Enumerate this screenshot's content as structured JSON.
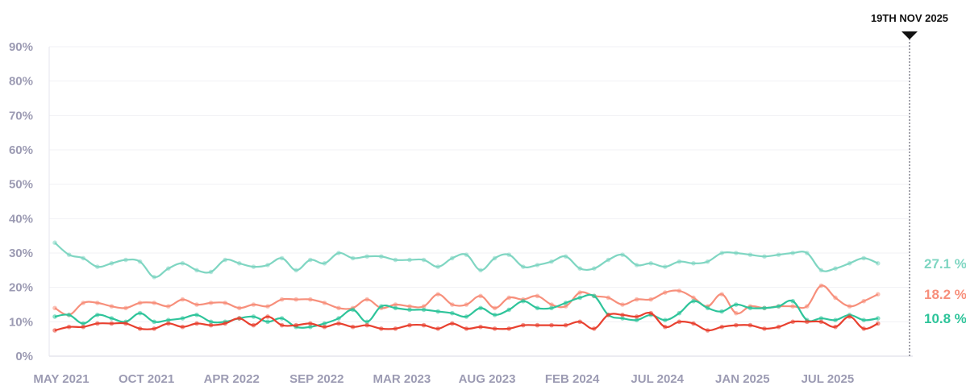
{
  "chart_data": {
    "type": "line",
    "title": "",
    "xlabel": "",
    "ylabel": "",
    "ylim": [
      0,
      90
    ],
    "y_ticks": [
      "0%",
      "10%",
      "20%",
      "30%",
      "40%",
      "50%",
      "60%",
      "70%",
      "80%",
      "90%"
    ],
    "x_tick_labels": [
      "MAY 2021",
      "OCT 2021",
      "APR 2022",
      "SEP 2022",
      "MAR 2023",
      "AUG 2023",
      "FEB 2024",
      "JUL 2024",
      "JAN 2025",
      "JUL 2025"
    ],
    "x_tick_indices": [
      0,
      6,
      12,
      18,
      24,
      30,
      36,
      42,
      48,
      54
    ],
    "date_marker": {
      "label": "19TH NOV 2025",
      "index": 59
    },
    "grid": true,
    "legend": "none",
    "colors": {
      "s1": "#7fd6c2",
      "s2": "#f78f7b",
      "s3": "#2ec49a",
      "s4": "#e8402f"
    },
    "series": [
      {
        "key": "s1",
        "end_label": "27.1 %",
        "values": [
          33,
          29.5,
          28.5,
          26,
          27,
          28,
          27.5,
          23,
          25.5,
          27,
          25,
          24.5,
          28,
          27,
          26,
          26.5,
          28.5,
          25,
          28,
          27,
          30,
          28.5,
          29,
          29,
          28,
          28,
          28,
          26,
          28.5,
          29.5,
          25,
          28.5,
          29.5,
          26,
          26.5,
          27.5,
          29,
          25.5,
          25.5,
          28,
          29.5,
          26.5,
          27,
          26,
          27.5,
          27,
          27.5,
          30,
          30,
          29.5,
          29,
          29.5,
          30,
          30,
          25,
          25.5,
          27,
          28.5,
          27
        ]
      },
      {
        "key": "s2",
        "end_label": "18.2 %",
        "values": [
          14,
          12,
          15.5,
          15.5,
          14.5,
          14,
          15.5,
          15.5,
          14.5,
          16.5,
          15,
          15.5,
          15.5,
          14,
          15,
          14.5,
          16.5,
          16.5,
          16.5,
          15.5,
          14,
          14,
          16.5,
          14,
          15,
          14.5,
          14.5,
          18,
          15,
          15,
          17.5,
          14,
          17,
          16.5,
          17.5,
          15,
          14.5,
          18.5,
          17.5,
          17,
          15,
          16.5,
          16.5,
          18.5,
          19,
          17,
          14.5,
          18,
          12.5,
          14.5,
          14,
          14.5,
          14.5,
          14.5,
          20.5,
          17,
          14.5,
          16,
          18
        ]
      },
      {
        "key": "s3",
        "end_label": "10.8 %",
        "values": [
          11.5,
          12,
          9.5,
          12,
          11,
          10,
          12.5,
          10,
          10.5,
          11,
          12,
          10,
          10,
          11,
          11.5,
          10,
          11,
          8.5,
          8.5,
          9.5,
          11,
          13.5,
          10,
          14.5,
          14,
          13.5,
          13.5,
          13,
          12.5,
          11.5,
          14,
          12,
          13.5,
          16,
          14,
          14,
          15.5,
          17,
          17.5,
          12,
          11,
          10.5,
          12,
          10.5,
          12.5,
          16,
          14,
          13,
          15,
          14,
          14,
          14.5,
          16,
          10.5,
          11,
          10.5,
          12,
          10.5,
          11
        ]
      },
      {
        "key": "s4",
        "end_label": "",
        "values": [
          7.5,
          8.5,
          8.5,
          9.5,
          9.5,
          9.5,
          8,
          8,
          9.5,
          8.5,
          9.5,
          9,
          9.5,
          11,
          9,
          11.5,
          9,
          9,
          9.5,
          8.5,
          9.5,
          8.5,
          9,
          8,
          8,
          9,
          9,
          8,
          9.5,
          8,
          8.5,
          8,
          8,
          9,
          9,
          9,
          9,
          10,
          8,
          12,
          12,
          11.5,
          12.5,
          8.5,
          10,
          9.5,
          7.5,
          8.5,
          9,
          9,
          8,
          8.5,
          10,
          10,
          10,
          8.5,
          11.5,
          8,
          9.5
        ]
      }
    ]
  }
}
